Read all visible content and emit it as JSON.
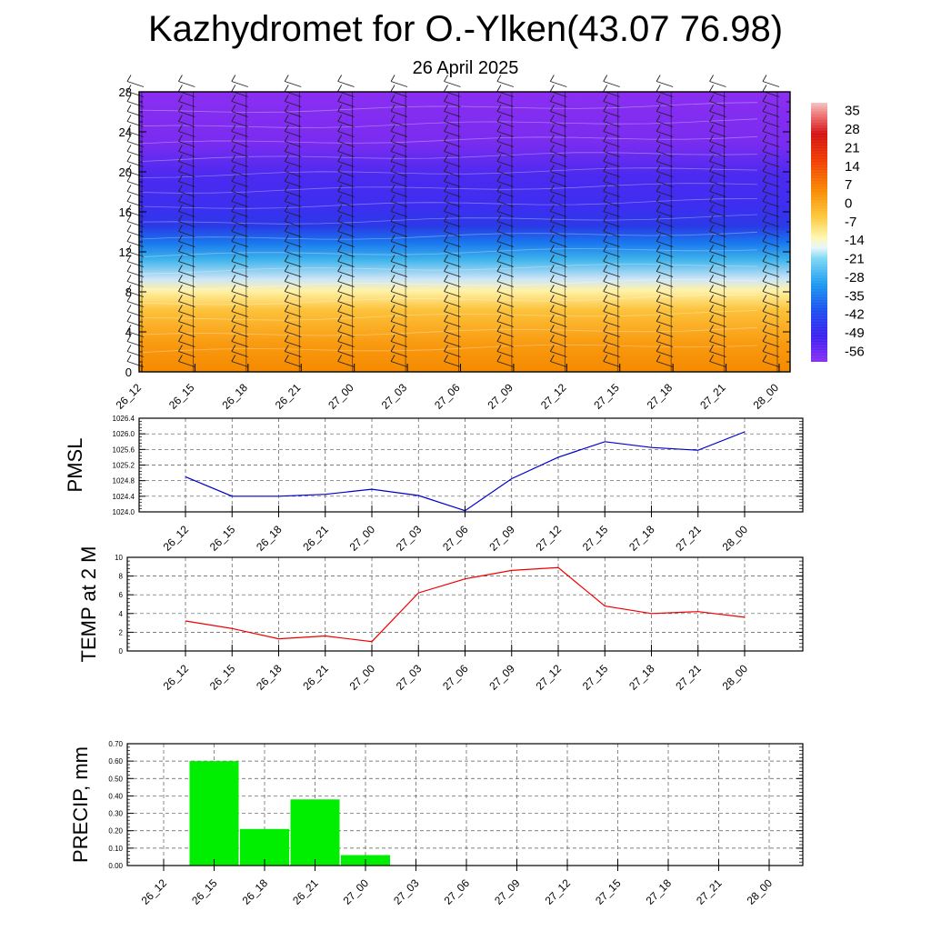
{
  "header": {
    "title": "Kazhydromet for O.-Ylken(43.07 76.98)",
    "subtitle": "26 April 2025"
  },
  "chart_data": [
    {
      "type": "heatmap",
      "name": "vertical-section",
      "x_tick_labels": [
        "26_12",
        "26_15",
        "26_18",
        "26_21",
        "27_00",
        "27_03",
        "27_06",
        "27_09",
        "27_12",
        "27_15",
        "27_18",
        "27_21",
        "28_00"
      ],
      "y_ticks": [
        0,
        4,
        8,
        12,
        16,
        20,
        24,
        28
      ],
      "ylim": [
        0,
        28
      ],
      "colorbar_labels": [
        "35",
        "28",
        "21",
        "14",
        "7",
        "0",
        "-7",
        "-14",
        "-21",
        "-28",
        "-35",
        "-42",
        "-49",
        "-56"
      ],
      "colorbar_range": [
        -60,
        38
      ],
      "wind_barbs": true
    },
    {
      "type": "line",
      "name": "pmsl",
      "ylabel": "PMSL",
      "categories": [
        "26_12",
        "26_15",
        "26_18",
        "26_21",
        "27_00",
        "27_03",
        "27_06",
        "27_09",
        "27_12",
        "27_15",
        "27_18",
        "27_21",
        "28_00"
      ],
      "y_tick_labels": [
        "1024.0",
        "1024.4",
        "1024.8",
        "1025.2",
        "1025.6",
        "1026.0",
        "1026.4"
      ],
      "ylim": [
        1024.0,
        1026.4
      ],
      "values": [
        1024.9,
        1024.4,
        1024.4,
        1024.45,
        1024.58,
        1024.42,
        1024.03,
        1024.85,
        1025.4,
        1025.8,
        1025.65,
        1025.58,
        1026.05
      ],
      "color": "#0000cc",
      "grid": true
    },
    {
      "type": "line",
      "name": "temp",
      "ylabel": "TEMP at 2 M",
      "categories": [
        "26_12",
        "26_15",
        "26_18",
        "26_21",
        "27_00",
        "27_03",
        "27_06",
        "27_09",
        "27_12",
        "27_15",
        "27_18",
        "27_21",
        "28_00"
      ],
      "y_tick_labels": [
        "0",
        "2",
        "4",
        "6",
        "8",
        "10"
      ],
      "ylim": [
        0,
        10
      ],
      "values": [
        3.2,
        2.4,
        1.3,
        1.6,
        1.0,
        6.2,
        7.7,
        8.6,
        8.9,
        4.8,
        4.0,
        4.2,
        3.6
      ],
      "color": "#ee0000",
      "grid": true
    },
    {
      "type": "bar",
      "name": "precip",
      "ylabel": "PRECIP, mm",
      "categories": [
        "26_12",
        "26_15",
        "26_18",
        "26_21",
        "27_00",
        "27_03",
        "27_06",
        "27_09",
        "27_12",
        "27_15",
        "27_18",
        "27_21",
        "28_00"
      ],
      "y_tick_labels": [
        "0.00",
        "0.10",
        "0.20",
        "0.30",
        "0.40",
        "0.50",
        "0.60",
        "0.70"
      ],
      "ylim": [
        0,
        0.7
      ],
      "values": [
        0,
        0.6,
        0.21,
        0.38,
        0.06,
        0,
        0,
        0,
        0,
        0,
        0,
        0,
        0
      ],
      "color": "#00ee00",
      "grid": true
    }
  ]
}
